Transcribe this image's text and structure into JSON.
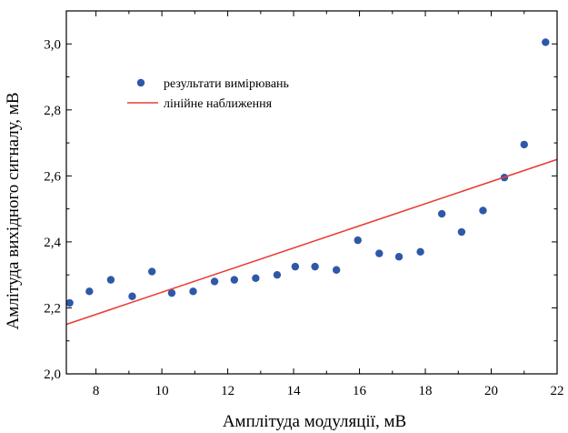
{
  "chart_data": {
    "type": "scatter",
    "title": "",
    "xlabel": "Амплітуда модуляції, мВ",
    "ylabel": "Амлітуда вихідного сигналу, мВ",
    "xlim": [
      7.1,
      22
    ],
    "ylim": [
      2.0,
      3.1
    ],
    "x_ticks": [
      8,
      10,
      12,
      14,
      16,
      18,
      20,
      22
    ],
    "x_tick_labels": [
      "8",
      "10",
      "12",
      "14",
      "16",
      "18",
      "20",
      "22"
    ],
    "y_ticks": [
      2.0,
      2.2,
      2.4,
      2.6,
      2.8,
      3.0
    ],
    "y_tick_labels": [
      "2,0",
      "2,2",
      "2,4",
      "2,6",
      "2,8",
      "3,0"
    ],
    "grid": false,
    "legend_position": "upper-left",
    "series": [
      {
        "name": "результати вимірювань",
        "kind": "points",
        "color": "#2e58a8",
        "x": [
          7.2,
          7.8,
          8.45,
          9.1,
          9.7,
          10.3,
          10.95,
          11.6,
          12.2,
          12.85,
          13.5,
          14.05,
          14.65,
          15.3,
          15.95,
          16.6,
          17.2,
          17.85,
          18.5,
          19.1,
          19.75,
          20.4,
          21.0,
          21.65
        ],
        "y": [
          2.215,
          2.25,
          2.285,
          2.235,
          2.31,
          2.245,
          2.25,
          2.28,
          2.285,
          2.29,
          2.3,
          2.325,
          2.325,
          2.315,
          2.405,
          2.365,
          2.355,
          2.37,
          2.485,
          2.43,
          2.495,
          2.595,
          2.695,
          3.005
        ]
      },
      {
        "name": "лінійне наближення",
        "kind": "line",
        "color": "#e8403a",
        "x": [
          7.1,
          22
        ],
        "y": [
          2.15,
          2.65
        ]
      }
    ]
  }
}
